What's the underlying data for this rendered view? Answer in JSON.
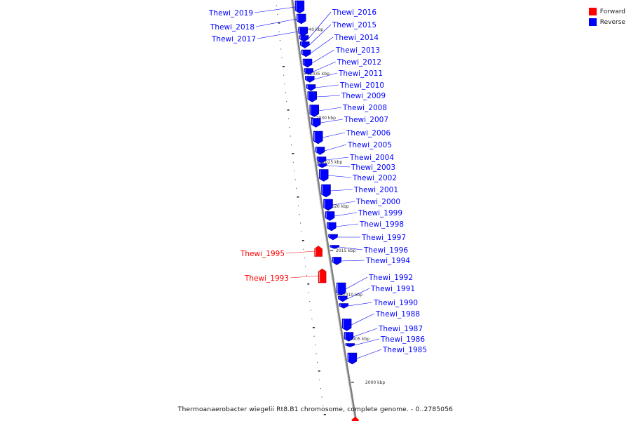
{
  "caption": "Thermoanaerobacter wiegelii Rt8.B1 chromosome, complete genome. - 0..2785056",
  "legend": [
    {
      "label": "Forward",
      "color": "#ff0000"
    },
    {
      "label": "Reverse",
      "color": "#0000ff"
    }
  ],
  "colors": {
    "forward": "#ff0000",
    "reverse": "#0000ff",
    "backbone": "#808080"
  },
  "kbp_labels": [
    "2040 kbp",
    "2035 kbp",
    "2030 kbp",
    "2025 kbp",
    "2020 kbp",
    "2015 kbp",
    "2010 kbp",
    "2005 kbp",
    "2000 kbp"
  ],
  "genes": [
    {
      "name": "Thewi_2019",
      "strand": "reverse"
    },
    {
      "name": "Thewi_2018",
      "strand": "reverse"
    },
    {
      "name": "Thewi_2017",
      "strand": "reverse"
    },
    {
      "name": "Thewi_2016",
      "strand": "reverse"
    },
    {
      "name": "Thewi_2015",
      "strand": "reverse"
    },
    {
      "name": "Thewi_2014",
      "strand": "reverse"
    },
    {
      "name": "Thewi_2013",
      "strand": "reverse"
    },
    {
      "name": "Thewi_2012",
      "strand": "reverse"
    },
    {
      "name": "Thewi_2011",
      "strand": "reverse"
    },
    {
      "name": "Thewi_2010",
      "strand": "reverse"
    },
    {
      "name": "Thewi_2009",
      "strand": "reverse"
    },
    {
      "name": "Thewi_2008",
      "strand": "reverse"
    },
    {
      "name": "Thewi_2007",
      "strand": "reverse"
    },
    {
      "name": "Thewi_2006",
      "strand": "reverse"
    },
    {
      "name": "Thewi_2005",
      "strand": "reverse"
    },
    {
      "name": "Thewi_2004",
      "strand": "reverse"
    },
    {
      "name": "Thewi_2003",
      "strand": "reverse"
    },
    {
      "name": "Thewi_2002",
      "strand": "reverse"
    },
    {
      "name": "Thewi_2001",
      "strand": "reverse"
    },
    {
      "name": "Thewi_2000",
      "strand": "reverse"
    },
    {
      "name": "Thewi_1999",
      "strand": "reverse"
    },
    {
      "name": "Thewi_1998",
      "strand": "reverse"
    },
    {
      "name": "Thewi_1997",
      "strand": "reverse"
    },
    {
      "name": "Thewi_1996",
      "strand": "reverse"
    },
    {
      "name": "Thewi_1995",
      "strand": "forward"
    },
    {
      "name": "Thewi_1994",
      "strand": "reverse"
    },
    {
      "name": "Thewi_1993",
      "strand": "forward"
    },
    {
      "name": "Thewi_1992",
      "strand": "reverse"
    },
    {
      "name": "Thewi_1991",
      "strand": "reverse"
    },
    {
      "name": "Thewi_1990",
      "strand": "reverse"
    },
    {
      "name": "Thewi_1988",
      "strand": "reverse"
    },
    {
      "name": "Thewi_1987",
      "strand": "reverse"
    },
    {
      "name": "Thewi_1986",
      "strand": "reverse"
    },
    {
      "name": "Thewi_1985",
      "strand": "reverse"
    }
  ]
}
